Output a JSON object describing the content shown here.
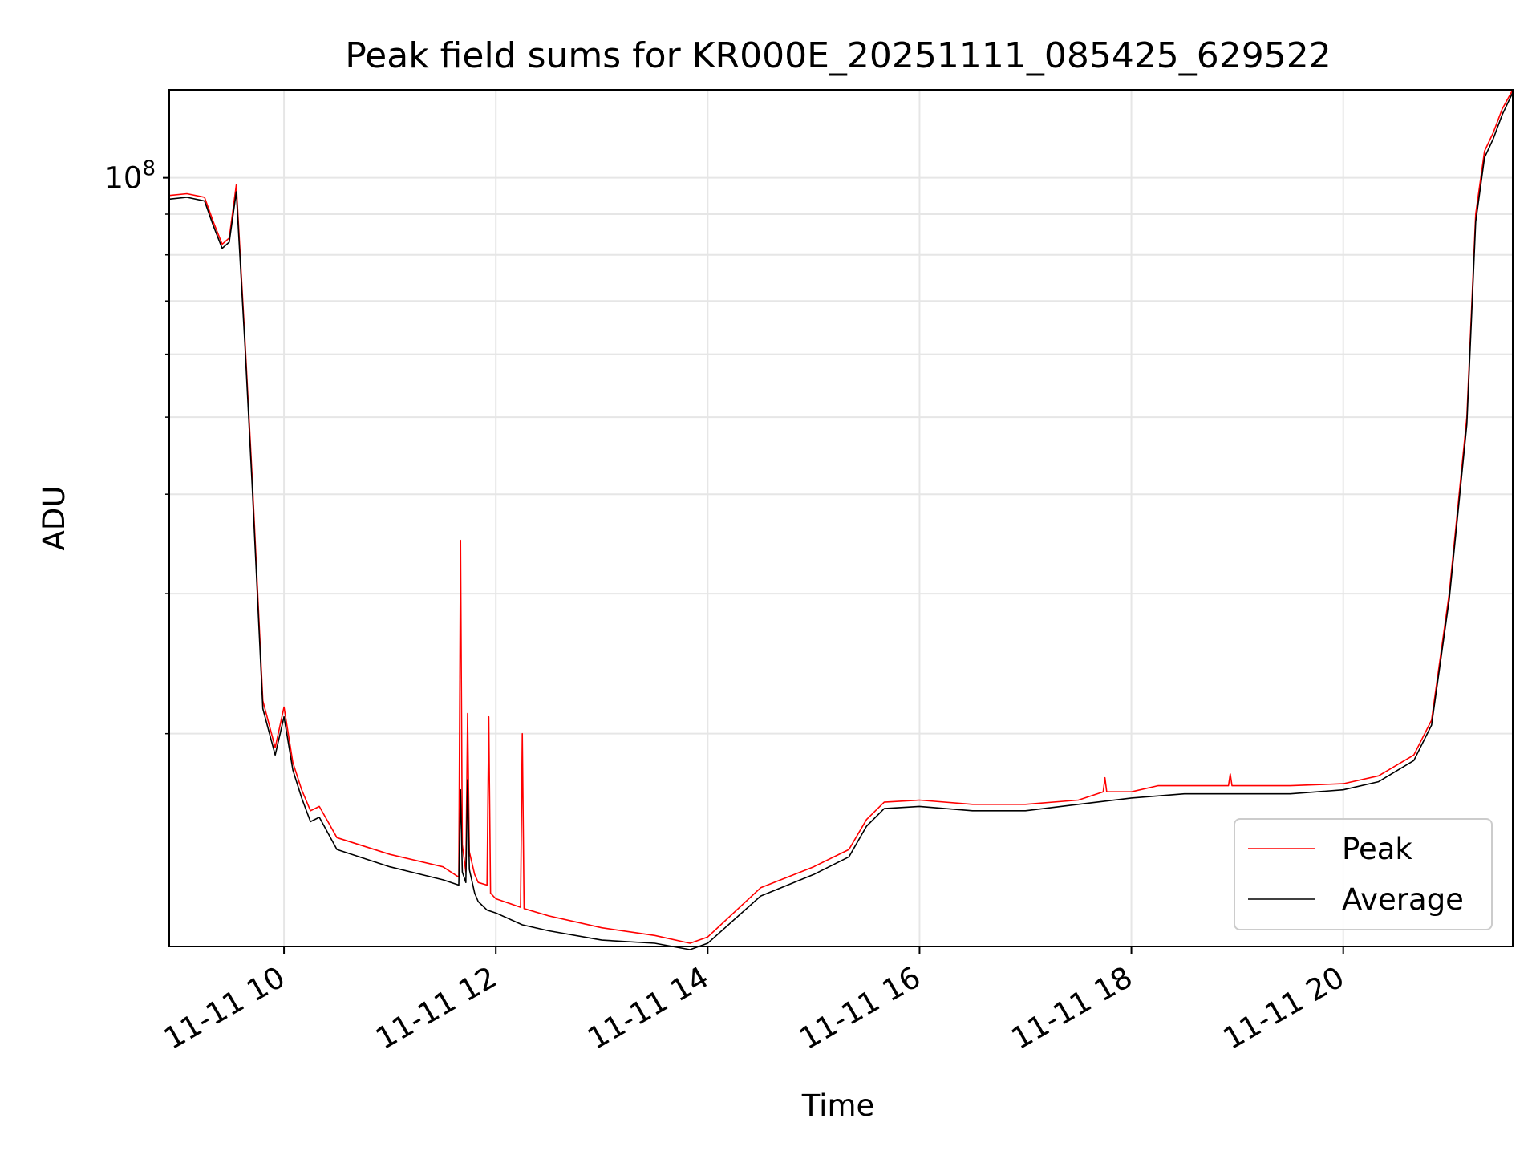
{
  "chart_data": {
    "type": "line",
    "title": "Peak field sums for KR000E_20251111_085425_629522",
    "xlabel": "Time",
    "ylabel": "ADU",
    "x_ticks": [
      "11-11 10",
      "11-11 12",
      "11-11 14",
      "11-11 16",
      "11-11 18",
      "11-11 20"
    ],
    "y_ticks": [
      {
        "base": "10",
        "exp": "8"
      }
    ],
    "xlim": [
      "2025-11-11 08:55",
      "2025-11-11 21:36"
    ],
    "ylim": [
      10800000,
      129000000
    ],
    "y_scale": "log",
    "grid": true,
    "legend_position": "lower-right",
    "series": [
      {
        "name": "Peak",
        "color": "#ff0000",
        "x": [
          "2025-11-11 08:55",
          "2025-11-11 09:05",
          "2025-11-11 09:15",
          "2025-11-11 09:20",
          "2025-11-11 09:25",
          "2025-11-11 09:29",
          "2025-11-11 09:33",
          "2025-11-11 09:38",
          "2025-11-11 09:42",
          "2025-11-11 09:48",
          "2025-11-11 09:55",
          "2025-11-11 10:00",
          "2025-11-11 10:05",
          "2025-11-11 10:10",
          "2025-11-11 10:15",
          "2025-11-11 10:20",
          "2025-11-11 10:30",
          "2025-11-11 11:00",
          "2025-11-11 11:30",
          "2025-11-11 11:39",
          "2025-11-11 11:40",
          "2025-11-11 11:41",
          "2025-11-11 11:43",
          "2025-11-11 11:44",
          "2025-11-11 11:45",
          "2025-11-11 11:48",
          "2025-11-11 11:50",
          "2025-11-11 11:55",
          "2025-11-11 11:56",
          "2025-11-11 11:57",
          "2025-11-11 12:00",
          "2025-11-11 12:14",
          "2025-11-11 12:15",
          "2025-11-11 12:16",
          "2025-11-11 12:30",
          "2025-11-11 13:00",
          "2025-11-11 13:30",
          "2025-11-11 13:50",
          "2025-11-11 14:00",
          "2025-11-11 14:30",
          "2025-11-11 15:00",
          "2025-11-11 15:20",
          "2025-11-11 15:30",
          "2025-11-11 15:40",
          "2025-11-11 16:00",
          "2025-11-11 16:30",
          "2025-11-11 17:00",
          "2025-11-11 17:30",
          "2025-11-11 17:44",
          "2025-11-11 17:45",
          "2025-11-11 17:46",
          "2025-11-11 18:00",
          "2025-11-11 18:15",
          "2025-11-11 18:30",
          "2025-11-11 18:55",
          "2025-11-11 18:56",
          "2025-11-11 18:57",
          "2025-11-11 19:30",
          "2025-11-11 20:00",
          "2025-11-11 20:20",
          "2025-11-11 20:40",
          "2025-11-11 20:50",
          "2025-11-11 21:00",
          "2025-11-11 21:10",
          "2025-11-11 21:15",
          "2025-11-11 21:20",
          "2025-11-11 21:25",
          "2025-11-11 21:30",
          "2025-11-11 21:36"
        ],
        "y": [
          95000000,
          95500000,
          94500000,
          88000000,
          82500000,
          84000000,
          98000000,
          62000000,
          42000000,
          22000000,
          19200000,
          21600000,
          18400000,
          17000000,
          16000000,
          16200000,
          14800000,
          14100000,
          13600000,
          13200000,
          35000000,
          14500000,
          13400000,
          21200000,
          14200000,
          13300000,
          13000000,
          12900000,
          21000000,
          12600000,
          12400000,
          12100000,
          20000000,
          12050000,
          11800000,
          11400000,
          11150000,
          10900000,
          11100000,
          12800000,
          13600000,
          14300000,
          15600000,
          16400000,
          16500000,
          16300000,
          16300000,
          16500000,
          16900000,
          17600000,
          16900000,
          16900000,
          17200000,
          17200000,
          17200000,
          17800000,
          17200000,
          17200000,
          17300000,
          17700000,
          18800000,
          20800000,
          30000000,
          50000000,
          90000000,
          108000000,
          114000000,
          122000000,
          129000000
        ]
      },
      {
        "name": "Average",
        "color": "#000000",
        "x": [
          "2025-11-11 08:55",
          "2025-11-11 09:05",
          "2025-11-11 09:15",
          "2025-11-11 09:20",
          "2025-11-11 09:25",
          "2025-11-11 09:29",
          "2025-11-11 09:33",
          "2025-11-11 09:38",
          "2025-11-11 09:42",
          "2025-11-11 09:48",
          "2025-11-11 09:55",
          "2025-11-11 10:00",
          "2025-11-11 10:05",
          "2025-11-11 10:10",
          "2025-11-11 10:15",
          "2025-11-11 10:20",
          "2025-11-11 10:30",
          "2025-11-11 11:00",
          "2025-11-11 11:30",
          "2025-11-11 11:39",
          "2025-11-11 11:40",
          "2025-11-11 11:41",
          "2025-11-11 11:43",
          "2025-11-11 11:44",
          "2025-11-11 11:45",
          "2025-11-11 11:48",
          "2025-11-11 11:50",
          "2025-11-11 11:55",
          "2025-11-11 12:00",
          "2025-11-11 12:15",
          "2025-11-11 12:30",
          "2025-11-11 13:00",
          "2025-11-11 13:30",
          "2025-11-11 13:50",
          "2025-11-11 14:00",
          "2025-11-11 14:30",
          "2025-11-11 15:00",
          "2025-11-11 15:20",
          "2025-11-11 15:30",
          "2025-11-11 15:40",
          "2025-11-11 16:00",
          "2025-11-11 16:30",
          "2025-11-11 17:00",
          "2025-11-11 17:30",
          "2025-11-11 18:00",
          "2025-11-11 18:30",
          "2025-11-11 19:00",
          "2025-11-11 19:30",
          "2025-11-11 20:00",
          "2025-11-11 20:20",
          "2025-11-11 20:40",
          "2025-11-11 20:50",
          "2025-11-11 21:00",
          "2025-11-11 21:10",
          "2025-11-11 21:15",
          "2025-11-11 21:20",
          "2025-11-11 21:25",
          "2025-11-11 21:30",
          "2025-11-11 21:36"
        ],
        "y": [
          94000000,
          94500000,
          93500000,
          87000000,
          81500000,
          83000000,
          96000000,
          61000000,
          41000000,
          21500000,
          18800000,
          21000000,
          18000000,
          16600000,
          15500000,
          15700000,
          14300000,
          13600000,
          13100000,
          12900000,
          17000000,
          13400000,
          13000000,
          17500000,
          13500000,
          12600000,
          12300000,
          12000000,
          11900000,
          11500000,
          11300000,
          11000000,
          10900000,
          10700000,
          10900000,
          12500000,
          13300000,
          14000000,
          15300000,
          16100000,
          16200000,
          16000000,
          16000000,
          16300000,
          16600000,
          16800000,
          16800000,
          16800000,
          17000000,
          17400000,
          18500000,
          20500000,
          29500000,
          49000000,
          88000000,
          106000000,
          112000000,
          120000000,
          128000000
        ]
      }
    ]
  }
}
